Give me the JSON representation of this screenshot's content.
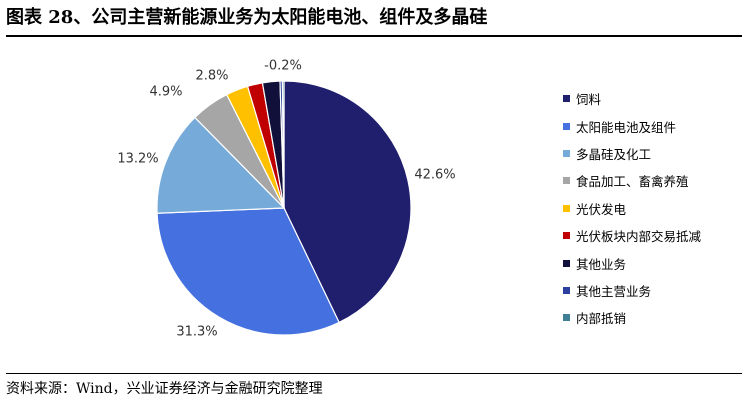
{
  "title": "图表 28、公司主营新能源业务为太阳能电池、组件及多晶硅",
  "source": "资料来源：Wind，兴业证券经济与金融研究院整理",
  "chart_data": {
    "type": "pie",
    "title": "",
    "legend_position": "right",
    "start_angle_deg": 0,
    "direction": "clockwise",
    "slices": [
      {
        "name": "饲料",
        "value": 42.6,
        "label": "42.6%",
        "color": "#1f1f6e"
      },
      {
        "name": "太阳能电池及组件",
        "value": 31.3,
        "label": "31.3%",
        "color": "#4470e0"
      },
      {
        "name": "多晶硅及化工",
        "value": 13.2,
        "label": "13.2%",
        "color": "#76aad8"
      },
      {
        "name": "食品加工、畜禽养殖",
        "value": 4.9,
        "label": "4.9%",
        "color": "#a6a6a6"
      },
      {
        "name": "光伏发电",
        "value": 2.8,
        "label": "2.8%",
        "color": "#ffc000"
      },
      {
        "name": "光伏板块内部交易抵减",
        "value": 1.9,
        "label": "",
        "color": "#c00000"
      },
      {
        "name": "其他业务",
        "value": 2.2,
        "label": "",
        "color": "#10103a"
      },
      {
        "name": "其他主营业务",
        "value": 0.3,
        "label": "",
        "color": "#2a3f9e"
      },
      {
        "name": "内部抵销",
        "value": 0.2,
        "label": "-0.2%",
        "color": "#3e7f96"
      }
    ]
  }
}
